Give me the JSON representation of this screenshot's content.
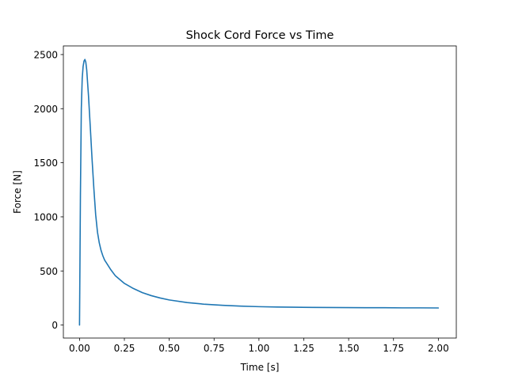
{
  "chart_data": {
    "type": "line",
    "title": "Shock Cord Force vs Time",
    "xlabel": "Time [s]",
    "ylabel": "Force [N]",
    "xlim": [
      -0.09,
      2.1
    ],
    "ylim": [
      -120,
      2580
    ],
    "xticks": [
      0.0,
      0.25,
      0.5,
      0.75,
      1.0,
      1.25,
      1.5,
      1.75,
      2.0
    ],
    "xtick_labels": [
      "0.00",
      "0.25",
      "0.50",
      "0.75",
      "1.00",
      "1.25",
      "1.50",
      "1.75",
      "2.00"
    ],
    "yticks": [
      0,
      500,
      1000,
      1500,
      2000,
      2500
    ],
    "ytick_labels": [
      "0",
      "500",
      "1000",
      "1500",
      "2000",
      "2500"
    ],
    "grid": false,
    "legend": "none",
    "series": [
      {
        "color": "#1f77b4",
        "x": [
          0.0,
          0.005,
          0.01,
          0.015,
          0.02,
          0.025,
          0.03,
          0.035,
          0.04,
          0.05,
          0.06,
          0.07,
          0.08,
          0.09,
          0.1,
          0.11,
          0.12,
          0.13,
          0.14,
          0.15,
          0.175,
          0.2,
          0.25,
          0.3,
          0.35,
          0.4,
          0.45,
          0.5,
          0.6,
          0.7,
          0.8,
          0.9,
          1.0,
          1.1,
          1.2,
          1.3,
          1.4,
          1.5,
          1.6,
          1.7,
          1.8,
          1.9,
          2.0
        ],
        "y": [
          0,
          1200,
          2000,
          2280,
          2390,
          2440,
          2455,
          2430,
          2360,
          2120,
          1830,
          1530,
          1260,
          1020,
          860,
          760,
          690,
          640,
          600,
          575,
          510,
          455,
          385,
          338,
          300,
          272,
          250,
          232,
          208,
          192,
          182,
          175,
          170,
          167,
          165,
          163,
          162,
          161,
          160,
          160,
          159,
          159,
          158
        ]
      }
    ]
  }
}
